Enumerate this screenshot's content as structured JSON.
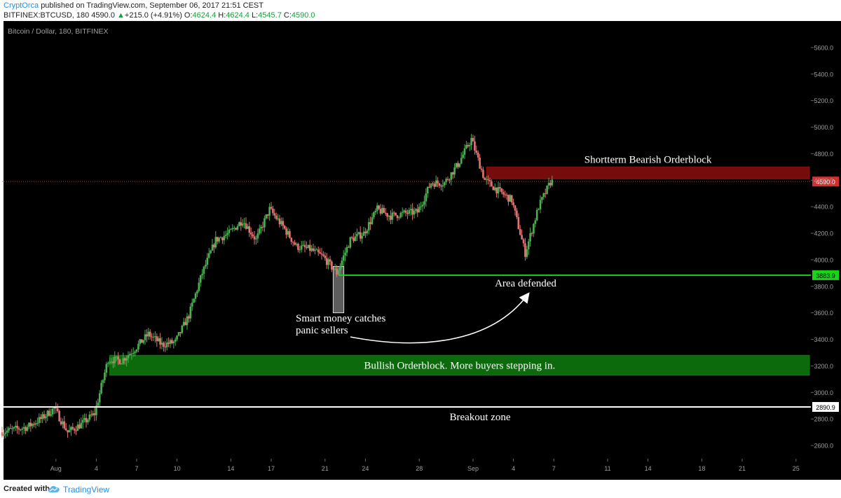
{
  "header": {
    "author": "CryptOrca",
    "published": "published on TradingView.com, September 06, 2017 21:51 CEST",
    "symbol_line": "BITFINEX:BTCUSD, 180 4590.0",
    "change_arrow": "▲",
    "change": "+215.0 (+4.91%)",
    "o_label": "O:",
    "o_value": "4624.4",
    "h_label": "H:",
    "h_value": "4624.4",
    "l_label": "L:",
    "l_value": "4545.7",
    "c_label": "C:",
    "c_value": "4590.0"
  },
  "footer": {
    "created_with": "Created with",
    "brand": "TradingView",
    "logo_icon": "tradingview-cloud-icon"
  },
  "chart_data": {
    "type": "candlestick",
    "title": "Bitcoin / Dollar, 180, BITFINEX",
    "colors": {
      "background": "#000000",
      "up": "#4caf50",
      "down": "#e57373",
      "bearish_zone": "#8b0f0f",
      "bullish_zone": "#0e7d0e",
      "support_line": "#19d419",
      "breakout_line": "#ffffff",
      "axis_text": "#9e9e9e"
    },
    "y_axis": {
      "range": [
        2500,
        5800
      ],
      "ticks": [
        "2600.0",
        "2800.0",
        "3000.0",
        "3200.0",
        "3400.0",
        "3600.0",
        "3800.0",
        "4000.0",
        "4200.0",
        "4400.0",
        "4600.0",
        "4800.0",
        "5000.0",
        "5200.0",
        "5400.0",
        "5600.0"
      ]
    },
    "x_axis": {
      "range": [
        "2017-07-28",
        "2017-09-26"
      ],
      "ticks": [
        {
          "label": "Aug",
          "date": "2017-08-01"
        },
        {
          "label": "4",
          "date": "2017-08-04"
        },
        {
          "label": "7",
          "date": "2017-08-07"
        },
        {
          "label": "10",
          "date": "2017-08-10"
        },
        {
          "label": "14",
          "date": "2017-08-14"
        },
        {
          "label": "17",
          "date": "2017-08-17"
        },
        {
          "label": "21",
          "date": "2017-08-21"
        },
        {
          "label": "24",
          "date": "2017-08-24"
        },
        {
          "label": "28",
          "date": "2017-08-28"
        },
        {
          "label": "Sep",
          "date": "2017-09-01"
        },
        {
          "label": "4",
          "date": "2017-09-04"
        },
        {
          "label": "7",
          "date": "2017-09-07"
        },
        {
          "label": "11",
          "date": "2017-09-11"
        },
        {
          "label": "14",
          "date": "2017-09-14"
        },
        {
          "label": "18",
          "date": "2017-09-18"
        },
        {
          "label": "21",
          "date": "2017-09-21"
        },
        {
          "label": "25",
          "date": "2017-09-25"
        }
      ]
    },
    "price_path": [
      {
        "date": "2017-07-28",
        "price": 2700
      },
      {
        "date": "2017-07-30",
        "price": 2740
      },
      {
        "date": "2017-07-31",
        "price": 2800
      },
      {
        "date": "2017-08-01",
        "price": 2880
      },
      {
        "date": "2017-08-02",
        "price": 2700
      },
      {
        "date": "2017-08-03",
        "price": 2760
      },
      {
        "date": "2017-08-04",
        "price": 2840
      },
      {
        "date": "2017-08-05",
        "price": 3250
      },
      {
        "date": "2017-08-06",
        "price": 3240
      },
      {
        "date": "2017-08-07",
        "price": 3330
      },
      {
        "date": "2017-08-08",
        "price": 3440
      },
      {
        "date": "2017-08-09",
        "price": 3360
      },
      {
        "date": "2017-08-10",
        "price": 3380
      },
      {
        "date": "2017-08-11",
        "price": 3580
      },
      {
        "date": "2017-08-12",
        "price": 3900
      },
      {
        "date": "2017-08-13",
        "price": 4150
      },
      {
        "date": "2017-08-14",
        "price": 4200
      },
      {
        "date": "2017-08-15",
        "price": 4300
      },
      {
        "date": "2017-08-16",
        "price": 4150
      },
      {
        "date": "2017-08-17",
        "price": 4380
      },
      {
        "date": "2017-08-18",
        "price": 4250
      },
      {
        "date": "2017-08-19",
        "price": 4100
      },
      {
        "date": "2017-08-20",
        "price": 4080
      },
      {
        "date": "2017-08-21",
        "price": 4020
      },
      {
        "date": "2017-08-22",
        "price": 3900
      },
      {
        "date": "2017-08-23",
        "price": 4150
      },
      {
        "date": "2017-08-24",
        "price": 4200
      },
      {
        "date": "2017-08-25",
        "price": 4380
      },
      {
        "date": "2017-08-26",
        "price": 4330
      },
      {
        "date": "2017-08-27",
        "price": 4350
      },
      {
        "date": "2017-08-28",
        "price": 4360
      },
      {
        "date": "2017-08-29",
        "price": 4580
      },
      {
        "date": "2017-08-30",
        "price": 4580
      },
      {
        "date": "2017-08-31",
        "price": 4720
      },
      {
        "date": "2017-09-01",
        "price": 4910
      },
      {
        "date": "2017-09-02",
        "price": 4600
      },
      {
        "date": "2017-09-03",
        "price": 4520
      },
      {
        "date": "2017-09-04",
        "price": 4450
      },
      {
        "date": "2017-09-05",
        "price": 4050
      },
      {
        "date": "2017-09-06",
        "price": 4400
      },
      {
        "date": "2017-09-06.9",
        "price": 4590
      }
    ],
    "zones": [
      {
        "label": "Shortterm Bearish Orderblock",
        "kind": "bearish",
        "from": "2017-09-02",
        "to": "2017-09-26",
        "low": 4610,
        "high": 4700
      },
      {
        "label": "Bullish Orderblock. More buyers stepping in.",
        "kind": "bullish",
        "from": "2017-08-05",
        "to": "2017-09-26",
        "low": 3130,
        "high": 3280
      }
    ],
    "lines": [
      {
        "label": "Area defended",
        "kind": "support",
        "price": 3883.9,
        "price_label": "3883.9",
        "from": "2017-08-22"
      },
      {
        "label": "Breakout zone",
        "kind": "breakout",
        "price": 2890.9,
        "price_label": "2890.9",
        "from": "2017-07-28"
      },
      {
        "label": "",
        "kind": "last",
        "price": 4590.0,
        "price_label": "4590.0",
        "from": "2017-07-28"
      }
    ],
    "annotations": [
      {
        "text_lines": [
          "Smart money catches",
          "panic sellers"
        ],
        "kind": "note"
      },
      {
        "text": "Area defended",
        "kind": "note"
      }
    ],
    "highlight_box": {
      "from": "2017-08-21.6",
      "to": "2017-08-22.4",
      "low": 3600,
      "high": 3950
    }
  }
}
